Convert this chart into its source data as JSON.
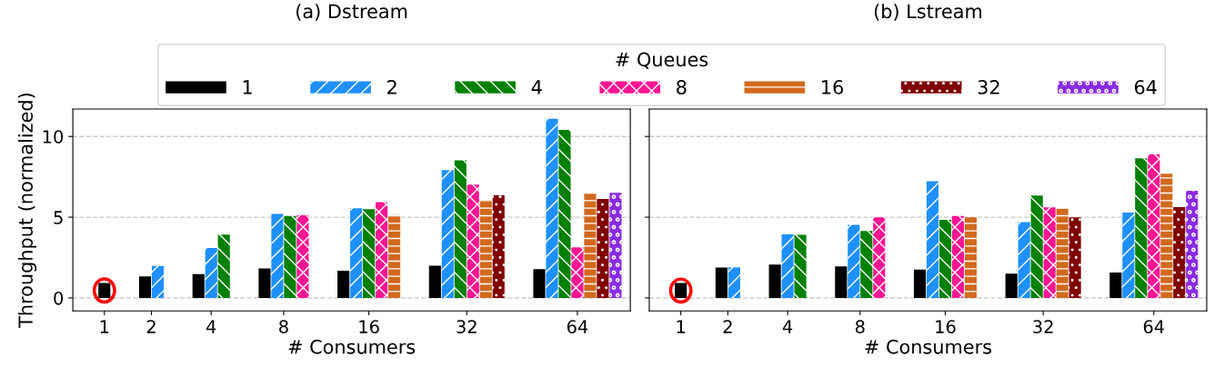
{
  "chart_data": [
    {
      "type": "bar",
      "title": "(a) Dstream",
      "xlabel": "# Consumers",
      "ylabel": "Throughput (normalized)",
      "legend_title": "# Queues",
      "legend": "top",
      "grid": "y",
      "categories": [
        "1",
        "2",
        "4",
        "8",
        "16",
        "32",
        "64"
      ],
      "ylim": [
        -0.8,
        11.7
      ],
      "yticks": [
        0,
        5,
        10
      ],
      "series": [
        {
          "name": "1",
          "color": "#000000",
          "values": [
            0.93,
            1.33,
            1.48,
            1.83,
            1.68,
            2.0,
            1.78
          ]
        },
        {
          "name": "2",
          "color": "#1e90ff",
          "values": [
            null,
            1.98,
            3.09,
            5.2,
            5.55,
            7.91,
            11.1
          ]
        },
        {
          "name": "4",
          "color": "#008000",
          "values": [
            null,
            null,
            3.92,
            5.08,
            5.5,
            8.52,
            10.4
          ]
        },
        {
          "name": "8",
          "color": "#ff1493",
          "values": [
            null,
            null,
            null,
            5.13,
            5.93,
            7.01,
            3.14
          ]
        },
        {
          "name": "16",
          "color": "#d2691e",
          "values": [
            null,
            null,
            null,
            null,
            5.13,
            6.06,
            6.51
          ]
        },
        {
          "name": "32",
          "color": "#800000",
          "values": [
            null,
            null,
            null,
            null,
            null,
            6.36,
            6.13
          ]
        },
        {
          "name": "64",
          "color": "#8a2be2",
          "values": [
            null,
            null,
            null,
            null,
            null,
            null,
            6.51
          ]
        }
      ]
    },
    {
      "type": "bar",
      "title": "(b) Lstream",
      "xlabel": "# Consumers",
      "grid": "y",
      "tick_labels": "x",
      "categories": [
        "1",
        "2",
        "4",
        "8",
        "16",
        "32",
        "64"
      ],
      "ylim": [
        -0.8,
        11.7
      ],
      "yticks": [
        0,
        5,
        10
      ],
      "series": [
        {
          "color": "#000000",
          "values": [
            0.92,
            1.88,
            2.06,
            1.95,
            1.76,
            1.51,
            1.58
          ]
        },
        {
          "color": "#1e90ff",
          "values": [
            null,
            1.9,
            3.94,
            4.53,
            7.23,
            4.69,
            5.29
          ]
        },
        {
          "color": "#008000",
          "values": [
            null,
            null,
            3.91,
            4.14,
            4.83,
            6.34,
            8.65
          ]
        },
        {
          "color": "#ff1493",
          "values": [
            null,
            null,
            null,
            4.99,
            5.08,
            5.61,
            8.9
          ]
        },
        {
          "color": "#d2691e",
          "values": [
            null,
            null,
            null,
            null,
            4.99,
            5.56,
            7.69
          ]
        },
        {
          "color": "#800000",
          "values": [
            null,
            null,
            null,
            null,
            null,
            4.99,
            5.63
          ]
        },
        {
          "color": "#8a2be2",
          "values": [
            null,
            null,
            null,
            null,
            null,
            null,
            6.64
          ]
        }
      ]
    }
  ]
}
